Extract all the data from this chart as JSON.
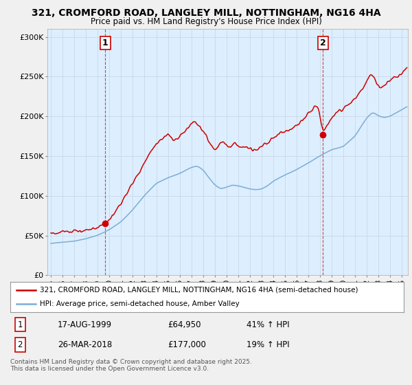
{
  "title1": "321, CROMFORD ROAD, LANGLEY MILL, NOTTINGHAM, NG16 4HA",
  "title2": "Price paid vs. HM Land Registry's House Price Index (HPI)",
  "property_label": "321, CROMFORD ROAD, LANGLEY MILL, NOTTINGHAM, NG16 4HA (semi-detached house)",
  "hpi_label": "HPI: Average price, semi-detached house, Amber Valley",
  "point1_date": "17-AUG-1999",
  "point1_price": "£64,950",
  "point1_hpi": "41% ↑ HPI",
  "point2_date": "26-MAR-2018",
  "point2_price": "£177,000",
  "point2_hpi": "19% ↑ HPI",
  "footer": "Contains HM Land Registry data © Crown copyright and database right 2025.\nThis data is licensed under the Open Government Licence v3.0.",
  "property_color": "#cc0000",
  "hpi_color": "#7aaed6",
  "background_color": "#f0f0f0",
  "plot_background": "#ddeeff",
  "grid_color": "#c8d8e8",
  "ylim": [
    0,
    310000
  ],
  "yticks": [
    0,
    50000,
    100000,
    150000,
    200000,
    250000,
    300000
  ],
  "ytick_labels": [
    "£0",
    "£50K",
    "£100K",
    "£150K",
    "£200K",
    "£250K",
    "£300K"
  ],
  "point1_x": 1999.63,
  "point1_y": 64950,
  "point2_x": 2018.23,
  "point2_y": 177000,
  "xmin": 1994.7,
  "xmax": 2025.5
}
